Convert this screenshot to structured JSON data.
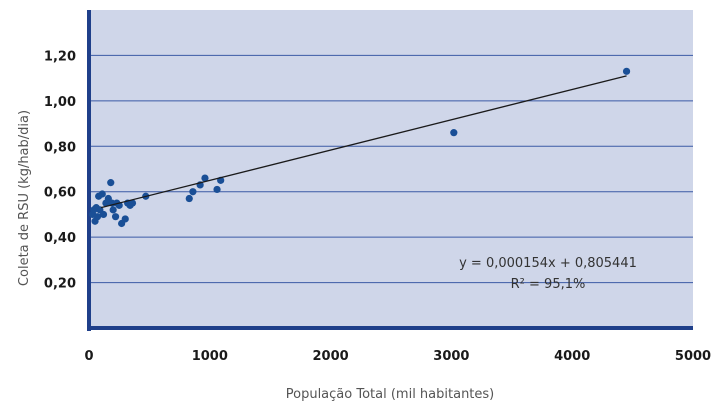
{
  "chart_data": {
    "type": "scatter",
    "xlabel": "População Total (mil habitantes)",
    "ylabel": "Coleta de RSU (kg/hab/dia)",
    "xlim": [
      0,
      5000
    ],
    "ylim": [
      0,
      1.4
    ],
    "x_ticks": [
      0,
      1000,
      2000,
      3000,
      4000,
      5000
    ],
    "x_tick_labels": [
      "0",
      "1000",
      "2000",
      "3000",
      "4000",
      "5000"
    ],
    "y_ticks": [
      0.2,
      0.4,
      0.6,
      0.8,
      1.0,
      1.2
    ],
    "y_tick_labels": [
      "0,20",
      "0,40",
      "0,60",
      "0,80",
      "1,00",
      "1,20"
    ],
    "grid": "horizontal",
    "colors": {
      "plot_background": "#cfd6e9",
      "grid": "#3b5aa6",
      "axis": "#1f3f8a",
      "points": "#1a4f96",
      "trendline": "#1a1a1a"
    },
    "series": [
      {
        "points": [
          [
            30,
            0.5
          ],
          [
            40,
            0.52
          ],
          [
            50,
            0.47
          ],
          [
            60,
            0.53
          ],
          [
            70,
            0.49
          ],
          [
            80,
            0.58
          ],
          [
            90,
            0.52
          ],
          [
            110,
            0.59
          ],
          [
            120,
            0.5
          ],
          [
            140,
            0.55
          ],
          [
            160,
            0.57
          ],
          [
            180,
            0.64
          ],
          [
            190,
            0.55
          ],
          [
            200,
            0.52
          ],
          [
            220,
            0.49
          ],
          [
            230,
            0.55
          ],
          [
            250,
            0.54
          ],
          [
            270,
            0.46
          ],
          [
            300,
            0.48
          ],
          [
            320,
            0.55
          ],
          [
            340,
            0.54
          ],
          [
            360,
            0.55
          ],
          [
            470,
            0.58
          ],
          [
            830,
            0.57
          ],
          [
            860,
            0.6
          ],
          [
            920,
            0.63
          ],
          [
            960,
            0.66
          ],
          [
            1060,
            0.61
          ],
          [
            1090,
            0.65
          ],
          [
            3020,
            0.86
          ],
          [
            4450,
            1.13
          ]
        ]
      }
    ],
    "trendline": {
      "slope": 0.000154,
      "intercept": 0.805441,
      "x_range": [
        0,
        4450
      ],
      "equation_label": "y = 0,000154x + 0,805441",
      "r2_label": "R² = 95,1%"
    }
  }
}
